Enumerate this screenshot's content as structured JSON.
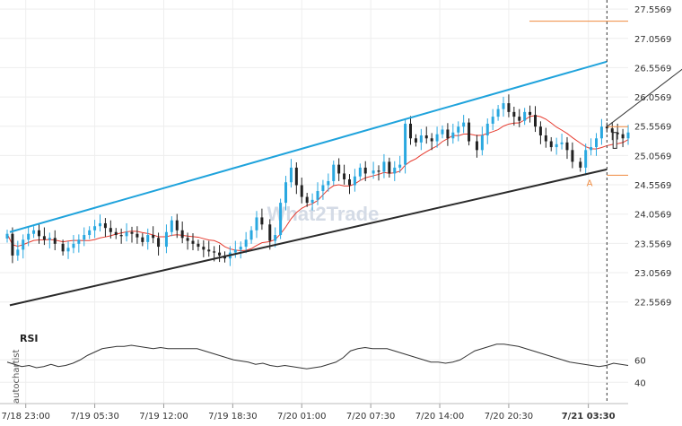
{
  "chart_data": {
    "type": "candlestick",
    "watermark": "What2Trade",
    "side_label": "autochartist",
    "y_ticks": [
      "27.5569",
      "27.0569",
      "26.5569",
      "26.0569",
      "25.5569",
      "25.0569",
      "24.5569",
      "24.0569",
      "23.5569",
      "23.0569",
      "22.5569"
    ],
    "y_tick_values": [
      27.5569,
      27.0569,
      26.5569,
      26.0569,
      25.5569,
      25.0569,
      24.5569,
      24.0569,
      23.5569,
      23.0569,
      22.5569
    ],
    "ylim": [
      22.2,
      27.62
    ],
    "x_ticks": [
      "7/18 23:00",
      "7/19 05:30",
      "7/19 12:00",
      "7/19 18:30",
      "7/20 01:00",
      "7/20 07:30",
      "7/20 14:00",
      "7/20 20:30",
      "7/21 03:30"
    ],
    "x_tick_bars": [
      7,
      33,
      59,
      85,
      111,
      137,
      163,
      189,
      219
    ],
    "bar_count": 235,
    "closes": [
      23.72,
      23.35,
      23.45,
      23.62,
      23.72,
      23.78,
      23.68,
      23.62,
      23.65,
      23.55,
      23.42,
      23.48,
      23.55,
      23.62,
      23.7,
      23.78,
      23.85,
      23.9,
      23.82,
      23.75,
      23.7,
      23.68,
      23.75,
      23.72,
      23.66,
      23.58,
      23.7,
      23.65,
      23.5,
      23.75,
      23.95,
      23.78,
      23.65,
      23.6,
      23.55,
      23.5,
      23.45,
      23.42,
      23.4,
      23.35,
      23.3,
      23.4,
      23.45,
      23.5,
      23.62,
      23.78,
      24.0,
      23.88,
      23.6,
      23.7,
      24.25,
      24.6,
      24.85,
      24.55,
      24.35,
      24.25,
      24.3,
      24.45,
      24.55,
      24.62,
      24.9,
      24.75,
      24.65,
      24.55,
      24.7,
      24.85,
      24.75,
      24.8,
      24.78,
      24.95,
      24.75,
      24.85,
      24.9,
      25.6,
      25.35,
      25.28,
      25.4,
      25.35,
      25.3,
      25.42,
      25.5,
      25.35,
      25.45,
      25.55,
      25.62,
      25.3,
      25.15,
      25.4,
      25.6,
      25.72,
      25.85,
      25.95,
      25.8,
      25.72,
      25.65,
      25.8,
      25.75,
      25.55,
      25.4,
      25.3,
      25.2,
      25.25,
      25.28,
      25.15,
      24.95,
      24.85,
      25.15,
      25.2,
      25.35,
      25.55,
      25.52,
      25.45,
      25.42,
      25.35,
      25.45
    ],
    "channel_upper": [
      [
        1,
        23.75
      ],
      [
        226,
        26.66
      ]
    ],
    "channel_lower": [
      [
        1,
        22.5
      ],
      [
        226,
        24.82
      ]
    ],
    "support_level": 24.72,
    "resistance_level": 25.55,
    "target_level": 27.35,
    "target_arrow": [
      [
        226,
        25.55
      ],
      [
        279,
        27.38
      ]
    ],
    "current_time_bar": 226,
    "pattern_point_label": "A",
    "rsi": {
      "title": "RSI",
      "ticks": [
        "60",
        "40"
      ],
      "tick_values": [
        60,
        40
      ],
      "ylim": [
        25,
        85
      ],
      "values": [
        58,
        56,
        54,
        55,
        53,
        54,
        56,
        54,
        55,
        57,
        60,
        64,
        67,
        70,
        71,
        72,
        72,
        73,
        72,
        71,
        70,
        71,
        70,
        70,
        70,
        70,
        70,
        68,
        66,
        64,
        62,
        60,
        59,
        58,
        56,
        57,
        55,
        54,
        55,
        54,
        53,
        52,
        53,
        54,
        56,
        58,
        62,
        68,
        70,
        71,
        70,
        70,
        70,
        68,
        66,
        64,
        62,
        60,
        58,
        58,
        57,
        58,
        60,
        64,
        68,
        70,
        72,
        74,
        74,
        73,
        72,
        70,
        68,
        66,
        64,
        62,
        60,
        58,
        57,
        56,
        55,
        54,
        55,
        57,
        56,
        55
      ]
    }
  }
}
